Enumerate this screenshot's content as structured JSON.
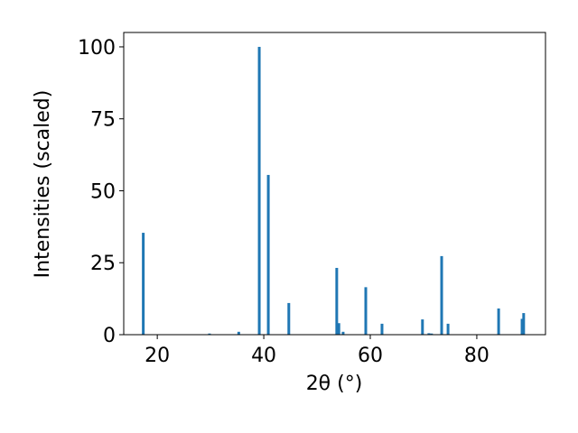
{
  "chart_data": {
    "type": "bar",
    "xlabel": "2θ (°)",
    "ylabel": "Intensities (scaled)",
    "x": [
      17.37,
      29.8,
      35.3,
      39.15,
      40.85,
      44.7,
      53.7,
      54.1,
      54.9,
      59.15,
      62.2,
      69.8,
      71.0,
      71.5,
      73.4,
      74.6,
      84.1,
      88.5,
      88.8
    ],
    "values": [
      35.4,
      0.4,
      1,
      100,
      55.5,
      11,
      23.2,
      4,
      1,
      16.5,
      3.8,
      5.3,
      0.5,
      0.4,
      27.3,
      3.8,
      9.1,
      5.5,
      7.5
    ],
    "color": "#1f77b4",
    "xlim": [
      13.7,
      92.9
    ],
    "xticks": [
      20,
      40,
      60,
      80
    ],
    "ylim": [
      0,
      105
    ],
    "yticks": [
      0,
      25,
      50,
      75,
      100
    ]
  }
}
